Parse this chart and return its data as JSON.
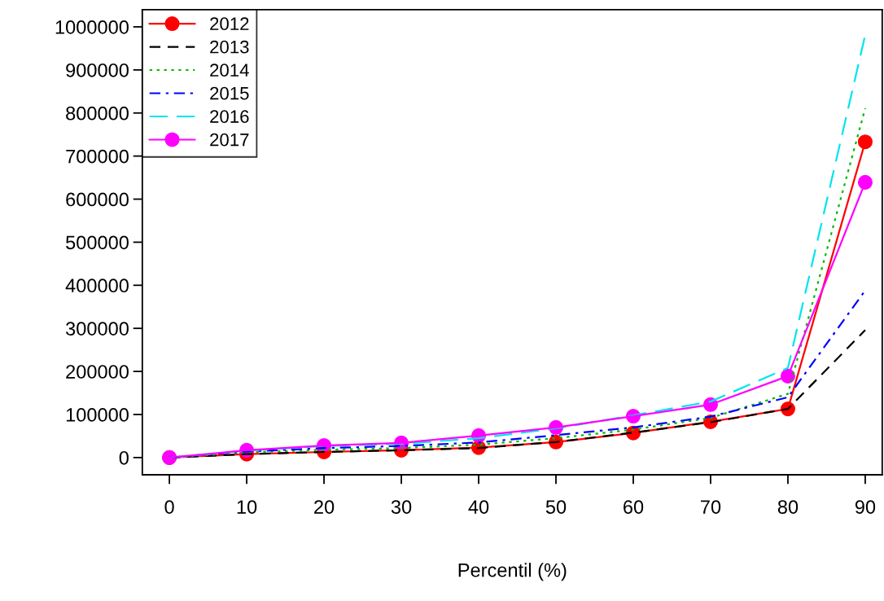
{
  "chart_data": {
    "type": "line",
    "xlabel": "Percentil (%)",
    "x": [
      0,
      10,
      20,
      30,
      40,
      50,
      60,
      70,
      80,
      90
    ],
    "xlim": [
      -3.5,
      92.2
    ],
    "xticks": [
      0,
      10,
      20,
      30,
      40,
      50,
      60,
      70,
      80,
      90
    ],
    "ylim": [
      -40000,
      1040000
    ],
    "yticks": [
      0,
      100000,
      200000,
      300000,
      400000,
      500000,
      600000,
      700000,
      800000,
      900000,
      1000000
    ],
    "grid": false,
    "legend": "top left",
    "series": [
      {
        "name": "2012",
        "color": "#ff0000",
        "line_style": "solid",
        "marker": "circle",
        "values": [
          0,
          8000,
          13000,
          17000,
          23000,
          36000,
          57000,
          83000,
          113000,
          733000
        ]
      },
      {
        "name": "2013",
        "color": "#000000",
        "line_style": "dashed",
        "marker": "none",
        "values": [
          0,
          8000,
          13000,
          17000,
          22000,
          36000,
          58000,
          82000,
          113000,
          296000
        ]
      },
      {
        "name": "2014",
        "color": "#00bb00",
        "line_style": "dotted",
        "marker": "none",
        "values": [
          0,
          12000,
          18000,
          22000,
          30000,
          45000,
          65000,
          92000,
          148000,
          811000
        ]
      },
      {
        "name": "2015",
        "color": "#0000ff",
        "line_style": "dashdot",
        "marker": "none",
        "values": [
          0,
          14000,
          22000,
          27000,
          35000,
          52000,
          70000,
          95000,
          140000,
          388000
        ]
      },
      {
        "name": "2016",
        "color": "#00e5ee",
        "line_style": "longdash",
        "marker": "none",
        "values": [
          0,
          16000,
          27000,
          32000,
          45000,
          68000,
          98000,
          130000,
          208000,
          981000
        ]
      },
      {
        "name": "2017",
        "color": "#ff00ff",
        "line_style": "solid",
        "marker": "circle",
        "values": [
          0,
          17000,
          28000,
          34000,
          51000,
          70000,
          96000,
          123000,
          189000,
          639000
        ]
      }
    ]
  }
}
